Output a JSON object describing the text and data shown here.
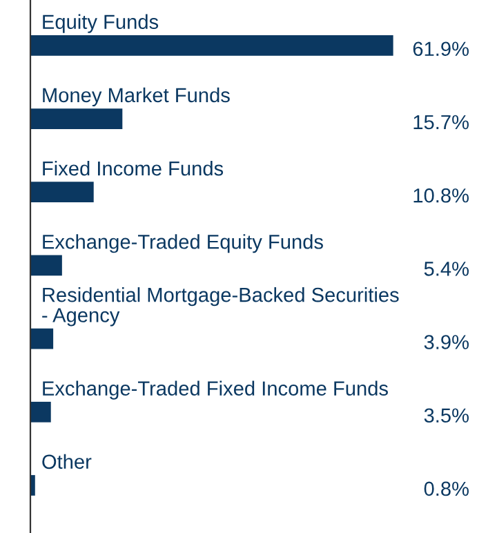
{
  "chart_data": {
    "type": "bar",
    "orientation": "horizontal",
    "categories": [
      "Equity Funds",
      "Money Market Funds",
      "Fixed Income Funds",
      "Exchange-Traded Equity Funds",
      "Residential Mortgage-Backed Securities\n- Agency",
      "Exchange-Traded Fixed Income Funds",
      "Other"
    ],
    "values": [
      61.9,
      15.7,
      10.8,
      5.4,
      3.9,
      3.5,
      0.8
    ],
    "value_labels": [
      "61.9%",
      "15.7%",
      "10.8%",
      "5.4%",
      "3.9%",
      "3.5%",
      "0.8%"
    ],
    "color": "#0b3861"
  }
}
